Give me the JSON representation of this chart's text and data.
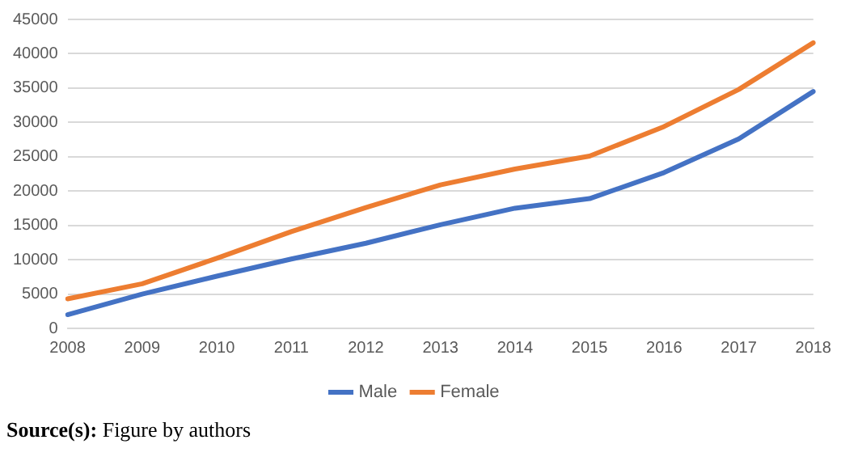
{
  "chart_data": {
    "type": "line",
    "categories": [
      "2008",
      "2009",
      "2010",
      "2011",
      "2012",
      "2013",
      "2014",
      "2015",
      "2016",
      "2017",
      "2018"
    ],
    "series": [
      {
        "name": "Male",
        "color": "#4472c4",
        "values": [
          2000,
          5000,
          7600,
          10100,
          12400,
          15100,
          17500,
          18900,
          22700,
          27600,
          34500
        ]
      },
      {
        "name": "Female",
        "color": "#ed7d31",
        "values": [
          4300,
          6500,
          10200,
          14100,
          17600,
          20900,
          23200,
          25100,
          29400,
          34800,
          41600
        ]
      }
    ],
    "ylim": [
      0,
      45000
    ],
    "yticks": [
      0,
      5000,
      10000,
      15000,
      20000,
      25000,
      30000,
      35000,
      40000,
      45000
    ],
    "grid": "y",
    "legend": "bottom",
    "marker": "none",
    "line_style": "solid",
    "annotations": [
      "Source(s): Figure by authors"
    ]
  }
}
